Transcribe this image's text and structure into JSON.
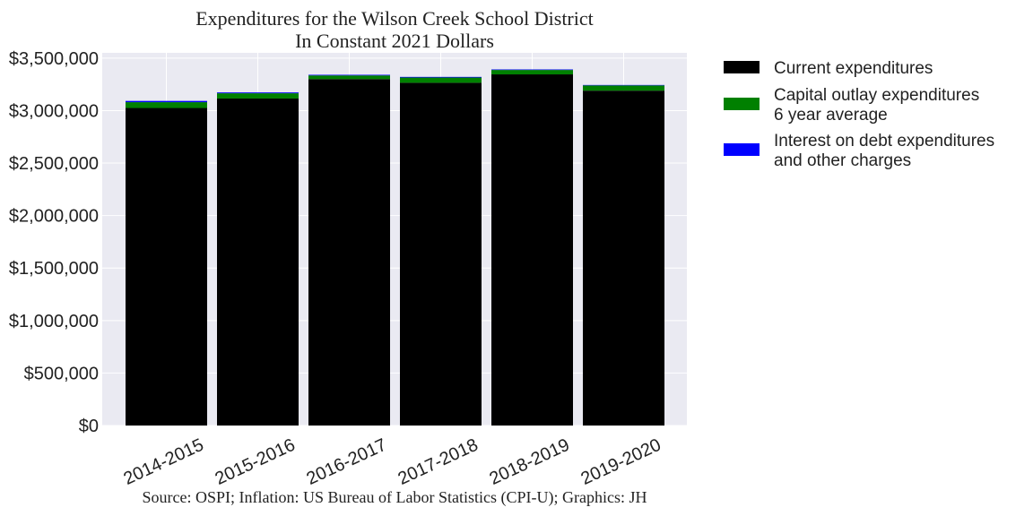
{
  "chart_data": {
    "type": "bar",
    "stacked": true,
    "title": [
      "Expenditures for the Wilson Creek School District",
      "In Constant 2021 Dollars"
    ],
    "source": "Source: OSPI; Inflation: US Bureau of Labor Statistics (CPI-U); Graphics: JH",
    "categories": [
      "2014-2015",
      "2015-2016",
      "2016-2017",
      "2017-2018",
      "2018-2019",
      "2019-2020"
    ],
    "series": [
      {
        "name": "Current expenditures",
        "color": "#000000",
        "values": [
          3025000,
          3115000,
          3300000,
          3265000,
          3345000,
          3190000
        ]
      },
      {
        "name": "Capital outlay expenditures\n6 year average",
        "color": "#008000",
        "values": [
          55000,
          50000,
          35000,
          50000,
          42000,
          50000
        ]
      },
      {
        "name": "Interest on debt expenditures\nand other charges",
        "color": "#0000ff",
        "values": [
          12000,
          8000,
          6000,
          6000,
          5000,
          4000
        ]
      }
    ],
    "ylim": [
      0,
      3550000
    ],
    "yticks": [
      0,
      500000,
      1000000,
      1500000,
      2000000,
      2500000,
      3000000,
      3500000
    ],
    "ytick_labels": [
      "$0",
      "$500,000",
      "$1,000,000",
      "$1,500,000",
      "$2,000,000",
      "$2,500,000",
      "$3,000,000",
      "$3,500,000"
    ],
    "xlabel": "",
    "ylabel": "",
    "grid": true,
    "legend_position": "outside-right-top",
    "plot_background": "#eaeaf2"
  }
}
